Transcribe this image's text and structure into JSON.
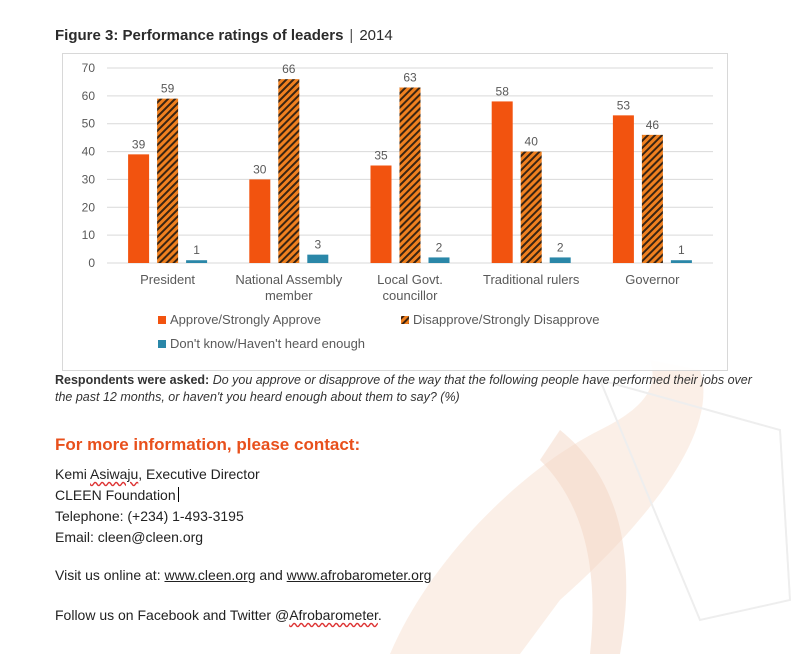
{
  "figure": {
    "title_bold": "Figure 3: Performance ratings of leaders",
    "separator": "|",
    "title_year": "2014"
  },
  "colors": {
    "approve": "#f2530f",
    "disapprove_fill": "#f0801f",
    "disapprove_hatch": "#3a2412",
    "dont_know": "#2a87a8",
    "grid": "#d9d9d9",
    "text": "#595959",
    "heading": "#e8501c"
  },
  "chart_data": {
    "type": "bar",
    "categories": [
      [
        "President"
      ],
      [
        "National Assembly",
        "member"
      ],
      [
        "Local Govt.",
        "councillor"
      ],
      [
        "Traditional rulers"
      ],
      [
        "Governor"
      ]
    ],
    "series": [
      {
        "name": "Approve/Strongly Approve",
        "values": [
          39,
          30,
          35,
          58,
          53
        ]
      },
      {
        "name": "Disapprove/Strongly Disapprove",
        "values": [
          59,
          66,
          63,
          40,
          46
        ]
      },
      {
        "name": "Don't know/Haven't heard enough",
        "values": [
          1,
          3,
          2,
          2,
          1
        ]
      }
    ],
    "ylim": [
      0,
      70
    ],
    "yticks": [
      0,
      10,
      20,
      30,
      40,
      50,
      60,
      70
    ],
    "grid": true,
    "legend_position": "bottom"
  },
  "note": {
    "label": "Respondents were asked:",
    "question": "Do you approve or disapprove of the way that the following people have performed their jobs over the past 12 months, or haven't you heard enough about them to say? (%)"
  },
  "contact": {
    "heading": "For more information, please contact:",
    "name_pre": "Kemi ",
    "name_squiggle": "Asiwaju",
    "name_post": ", Executive Director",
    "org": "CLEEN Foundation",
    "phone": "Telephone: (+234) 1-493-3195",
    "email": "Email: cleen@cleen.org"
  },
  "visit": {
    "prefix": "Visit us online at: ",
    "link1": "www.cleen.org",
    "middle": " and ",
    "link2": "www.afrobarometer.org"
  },
  "follow": {
    "prefix": "Follow us on Facebook and Twitter @",
    "handle": "Afrobarometer",
    "suffix": "."
  }
}
